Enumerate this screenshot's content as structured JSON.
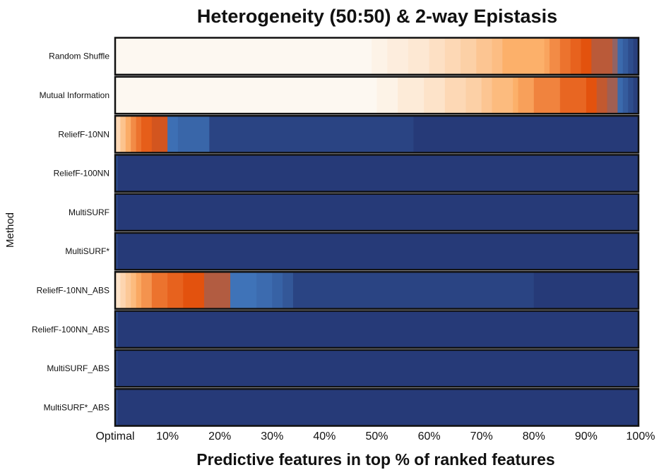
{
  "chart_data": {
    "type": "heatmap",
    "title": "Heterogeneity (50:50) & 2-way Epistasis",
    "xlabel": "Predictive features in top % of ranked features",
    "ylabel": "Method",
    "x_tick_labels": [
      "Optimal",
      "10%",
      "20%",
      "30%",
      "40%",
      "50%",
      "60%",
      "70%",
      "80%",
      "90%",
      "100%"
    ],
    "xlim": [
      0,
      100
    ],
    "categories": [
      "Random Shuffle",
      "Mutual Information",
      "ReliefF-10NN",
      "ReliefF-100NN",
      "MultiSURF",
      "MultiSURF*",
      "ReliefF-10NN_ABS",
      "ReliefF-100NN_ABS",
      "MultiSURF_ABS",
      "MultiSURF*_ABS"
    ],
    "color_scale": {
      "low": "#fdf8f1",
      "mid_low": "#fcb06a",
      "mid": "#e3520e",
      "high": "#3f73b8",
      "max": "#263a78"
    },
    "series": [
      {
        "method": "Random Shuffle",
        "segments": [
          {
            "start": 0,
            "end": 49,
            "fraction": 0.0
          },
          {
            "start": 49,
            "end": 52,
            "fraction": 0.02
          },
          {
            "start": 52,
            "end": 56,
            "fraction": 0.04
          },
          {
            "start": 56,
            "end": 60,
            "fraction": 0.06
          },
          {
            "start": 60,
            "end": 63,
            "fraction": 0.09
          },
          {
            "start": 63,
            "end": 66,
            "fraction": 0.12
          },
          {
            "start": 66,
            "end": 69,
            "fraction": 0.15
          },
          {
            "start": 69,
            "end": 72,
            "fraction": 0.19
          },
          {
            "start": 72,
            "end": 74,
            "fraction": 0.22
          },
          {
            "start": 74,
            "end": 82,
            "fraction": 0.27
          },
          {
            "start": 82,
            "end": 83,
            "fraction": 0.3
          },
          {
            "start": 83,
            "end": 85,
            "fraction": 0.36
          },
          {
            "start": 85,
            "end": 87,
            "fraction": 0.42
          },
          {
            "start": 87,
            "end": 89,
            "fraction": 0.46
          },
          {
            "start": 89,
            "end": 91,
            "fraction": 0.5
          },
          {
            "start": 91,
            "end": 95,
            "fraction": 0.55
          },
          {
            "start": 95,
            "end": 96,
            "fraction": 0.6
          },
          {
            "start": 96,
            "end": 97,
            "fraction": 0.75
          },
          {
            "start": 97,
            "end": 98,
            "fraction": 0.82
          },
          {
            "start": 98,
            "end": 99,
            "fraction": 0.9
          },
          {
            "start": 99,
            "end": 100,
            "fraction": 0.97
          }
        ]
      },
      {
        "method": "Mutual Information",
        "segments": [
          {
            "start": 0,
            "end": 50,
            "fraction": 0.0
          },
          {
            "start": 50,
            "end": 54,
            "fraction": 0.02
          },
          {
            "start": 54,
            "end": 59,
            "fraction": 0.05
          },
          {
            "start": 59,
            "end": 63,
            "fraction": 0.08
          },
          {
            "start": 63,
            "end": 67,
            "fraction": 0.12
          },
          {
            "start": 67,
            "end": 70,
            "fraction": 0.15
          },
          {
            "start": 70,
            "end": 72,
            "fraction": 0.19
          },
          {
            "start": 72,
            "end": 76,
            "fraction": 0.23
          },
          {
            "start": 76,
            "end": 77,
            "fraction": 0.27
          },
          {
            "start": 77,
            "end": 80,
            "fraction": 0.31
          },
          {
            "start": 80,
            "end": 85,
            "fraction": 0.38
          },
          {
            "start": 85,
            "end": 90,
            "fraction": 0.45
          },
          {
            "start": 90,
            "end": 92,
            "fraction": 0.5
          },
          {
            "start": 92,
            "end": 94,
            "fraction": 0.54
          },
          {
            "start": 94,
            "end": 96,
            "fraction": 0.58
          },
          {
            "start": 96,
            "end": 97,
            "fraction": 0.75
          },
          {
            "start": 97,
            "end": 98,
            "fraction": 0.82
          },
          {
            "start": 98,
            "end": 99,
            "fraction": 0.9
          },
          {
            "start": 99,
            "end": 100,
            "fraction": 0.97
          }
        ]
      },
      {
        "method": "ReliefF-10NN",
        "segments": [
          {
            "start": 0,
            "end": 1,
            "fraction": 0.12
          },
          {
            "start": 1,
            "end": 2,
            "fraction": 0.2
          },
          {
            "start": 2,
            "end": 3,
            "fraction": 0.28
          },
          {
            "start": 3,
            "end": 4,
            "fraction": 0.36
          },
          {
            "start": 4,
            "end": 5,
            "fraction": 0.42
          },
          {
            "start": 5,
            "end": 7,
            "fraction": 0.47
          },
          {
            "start": 7,
            "end": 10,
            "fraction": 0.52
          },
          {
            "start": 10,
            "end": 12,
            "fraction": 0.72
          },
          {
            "start": 12,
            "end": 18,
            "fraction": 0.77
          },
          {
            "start": 18,
            "end": 57,
            "fraction": 0.95
          },
          {
            "start": 57,
            "end": 100,
            "fraction": 1.0
          }
        ]
      },
      {
        "method": "ReliefF-100NN",
        "segments": [
          {
            "start": 0,
            "end": 0.5,
            "fraction": 0.9
          },
          {
            "start": 0.5,
            "end": 100,
            "fraction": 1.0
          }
        ]
      },
      {
        "method": "MultiSURF",
        "segments": [
          {
            "start": 0,
            "end": 0.5,
            "fraction": 0.92
          },
          {
            "start": 0.5,
            "end": 100,
            "fraction": 1.0
          }
        ]
      },
      {
        "method": "MultiSURF*",
        "segments": [
          {
            "start": 0,
            "end": 0.5,
            "fraction": 0.92
          },
          {
            "start": 0.5,
            "end": 100,
            "fraction": 1.0
          }
        ]
      },
      {
        "method": "ReliefF-10NN_ABS",
        "segments": [
          {
            "start": 0,
            "end": 1,
            "fraction": 0.08
          },
          {
            "start": 1,
            "end": 2,
            "fraction": 0.13
          },
          {
            "start": 2,
            "end": 3,
            "fraction": 0.18
          },
          {
            "start": 3,
            "end": 4,
            "fraction": 0.23
          },
          {
            "start": 4,
            "end": 5,
            "fraction": 0.29
          },
          {
            "start": 5,
            "end": 7,
            "fraction": 0.34
          },
          {
            "start": 7,
            "end": 10,
            "fraction": 0.42
          },
          {
            "start": 10,
            "end": 13,
            "fraction": 0.46
          },
          {
            "start": 13,
            "end": 17,
            "fraction": 0.5
          },
          {
            "start": 17,
            "end": 22,
            "fraction": 0.56
          },
          {
            "start": 22,
            "end": 27,
            "fraction": 0.7
          },
          {
            "start": 27,
            "end": 30,
            "fraction": 0.74
          },
          {
            "start": 30,
            "end": 32,
            "fraction": 0.79
          },
          {
            "start": 32,
            "end": 34,
            "fraction": 0.85
          },
          {
            "start": 34,
            "end": 80,
            "fraction": 0.95
          },
          {
            "start": 80,
            "end": 100,
            "fraction": 1.0
          }
        ]
      },
      {
        "method": "ReliefF-100NN_ABS",
        "segments": [
          {
            "start": 0,
            "end": 0.5,
            "fraction": 0.88
          },
          {
            "start": 0.5,
            "end": 100,
            "fraction": 1.0
          }
        ]
      },
      {
        "method": "MultiSURF_ABS",
        "segments": [
          {
            "start": 0,
            "end": 0.5,
            "fraction": 0.92
          },
          {
            "start": 0.5,
            "end": 100,
            "fraction": 1.0
          }
        ]
      },
      {
        "method": "MultiSURF*_ABS",
        "segments": [
          {
            "start": 0,
            "end": 0.5,
            "fraction": 0.92
          },
          {
            "start": 0.5,
            "end": 100,
            "fraction": 1.0
          }
        ]
      }
    ]
  }
}
